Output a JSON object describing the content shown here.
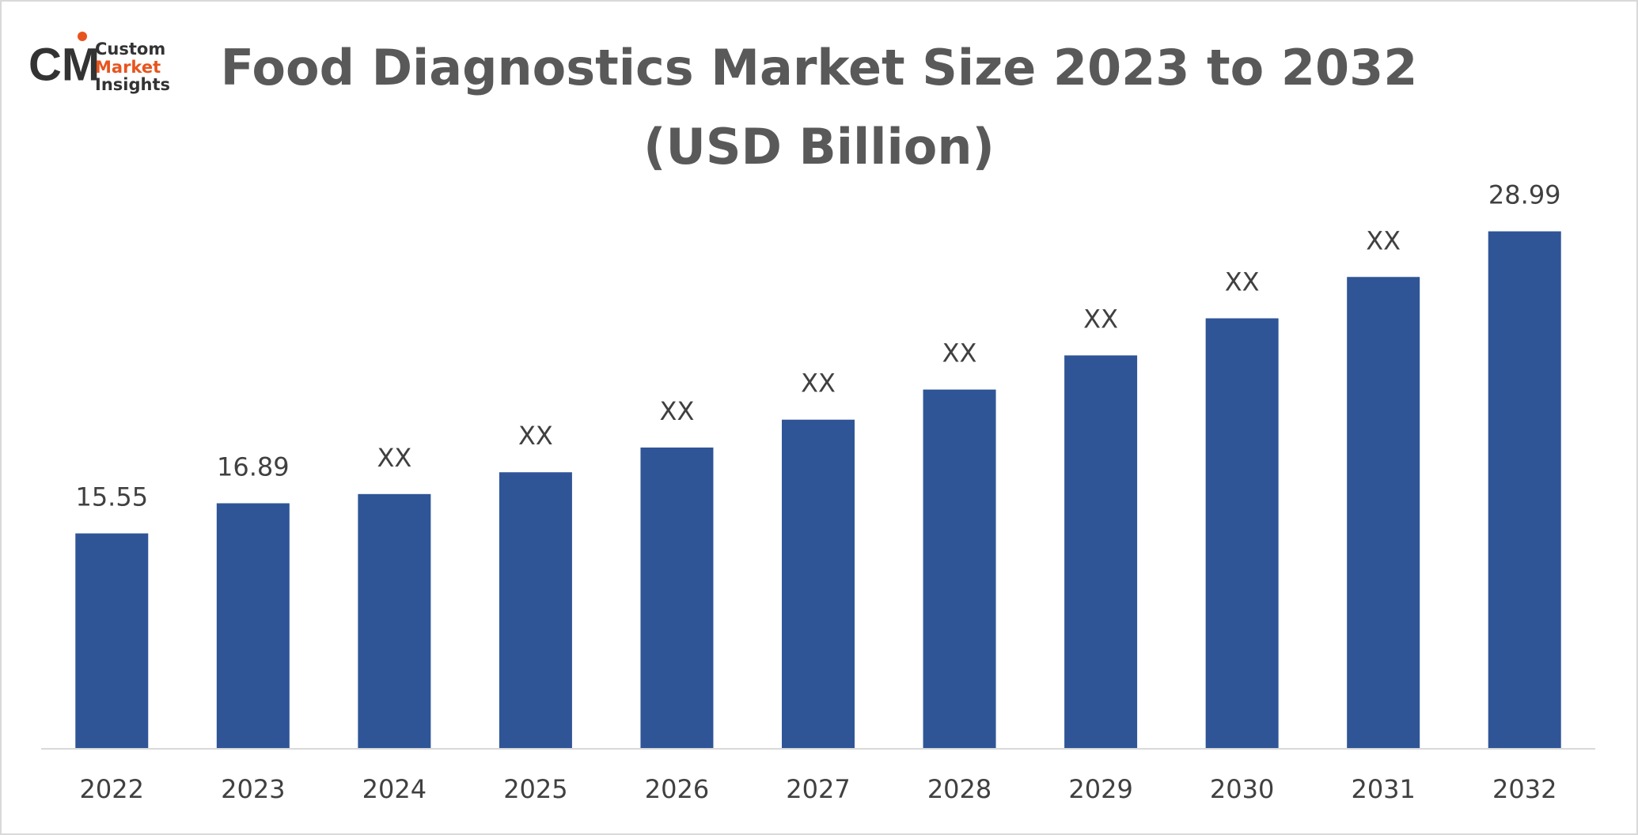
{
  "logo": {
    "line1": "Custom",
    "line2": "Market",
    "line3": "Insights"
  },
  "chart_data": {
    "type": "bar",
    "title": "Food Diagnostics Market Size 2023 to 2032",
    "subtitle": "(USD Billion)",
    "categories": [
      "2022",
      "2023",
      "2024",
      "2025",
      "2026",
      "2027",
      "2028",
      "2029",
      "2030",
      "2031",
      "2032"
    ],
    "values": [
      15.55,
      16.89,
      17.3,
      18.27,
      19.37,
      20.61,
      21.95,
      23.47,
      25.12,
      26.96,
      28.99
    ],
    "value_labels": [
      "15.55",
      "16.89",
      "XX",
      "XX",
      "XX",
      "XX",
      "XX",
      "XX",
      "XX",
      "XX",
      "28.99"
    ],
    "color": "#2f5597",
    "ylim": [
      6,
      32
    ],
    "grid": false
  }
}
